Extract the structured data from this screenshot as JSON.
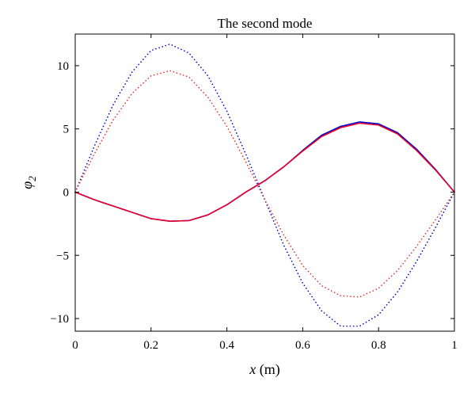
{
  "chart_data": {
    "type": "line",
    "title": "The second mode",
    "xlabel": "x (m)",
    "xlabel_var": "x",
    "xlabel_unit": " (m)",
    "ylabel": "φ2",
    "ylabel_var": "φ",
    "ylabel_sub": "2",
    "xlim": [
      0,
      1
    ],
    "ylim": [
      -11,
      12.5
    ],
    "xticks": [
      0,
      0.2,
      0.4,
      0.6,
      0.8,
      1
    ],
    "xtick_labels": [
      "0",
      "0.2",
      "0.4",
      "0.6",
      "0.8",
      "1"
    ],
    "yticks": [
      -10,
      -5,
      0,
      5,
      10
    ],
    "ytick_labels": [
      "−10",
      "−5",
      "0",
      "5",
      "10"
    ],
    "grid": false,
    "legend": "none",
    "series": [
      {
        "color": "#0000cc",
        "style": "dotted",
        "x": [
          0,
          0.05,
          0.1,
          0.15,
          0.2,
          0.25,
          0.3,
          0.35,
          0.4,
          0.45,
          0.5,
          0.55,
          0.6,
          0.65,
          0.7,
          0.75,
          0.8,
          0.85,
          0.9,
          0.95,
          1
        ],
        "y": [
          0,
          3.6,
          6.9,
          9.5,
          11.2,
          11.7,
          11.0,
          9.2,
          6.4,
          3.0,
          -0.6,
          -4.2,
          -7.2,
          -9.4,
          -10.6,
          -10.6,
          -9.7,
          -7.9,
          -5.5,
          -2.8,
          0
        ]
      },
      {
        "color": "#e03030",
        "style": "dotted",
        "x": [
          0,
          0.05,
          0.1,
          0.15,
          0.2,
          0.25,
          0.3,
          0.35,
          0.4,
          0.45,
          0.5,
          0.55,
          0.6,
          0.65,
          0.7,
          0.75,
          0.8,
          0.85,
          0.9,
          0.95,
          1
        ],
        "y": [
          0,
          3.0,
          5.7,
          7.8,
          9.2,
          9.6,
          9.1,
          7.5,
          5.2,
          2.4,
          -0.6,
          -3.4,
          -5.8,
          -7.4,
          -8.2,
          -8.3,
          -7.6,
          -6.2,
          -4.3,
          -2.2,
          0
        ]
      },
      {
        "color": "#0000cc",
        "style": "solid",
        "x": [
          0,
          0.05,
          0.1,
          0.15,
          0.2,
          0.25,
          0.3,
          0.35,
          0.4,
          0.45,
          0.5,
          0.55,
          0.6,
          0.65,
          0.7,
          0.75,
          0.8,
          0.85,
          0.9,
          0.95,
          1
        ],
        "y": [
          0,
          -0.6,
          -1.1,
          -1.6,
          -2.1,
          -2.3,
          -2.25,
          -1.8,
          -1.0,
          0.0,
          0.9,
          2.0,
          3.3,
          4.5,
          5.2,
          5.55,
          5.4,
          4.7,
          3.4,
          1.8,
          0
        ]
      },
      {
        "color": "#e8002a",
        "style": "solid",
        "x": [
          0,
          0.05,
          0.1,
          0.15,
          0.2,
          0.25,
          0.3,
          0.35,
          0.4,
          0.45,
          0.5,
          0.55,
          0.6,
          0.65,
          0.7,
          0.75,
          0.8,
          0.85,
          0.9,
          0.95,
          1
        ],
        "y": [
          0,
          -0.6,
          -1.1,
          -1.6,
          -2.1,
          -2.3,
          -2.25,
          -1.8,
          -1.0,
          0.0,
          0.9,
          2.0,
          3.25,
          4.4,
          5.1,
          5.45,
          5.3,
          4.6,
          3.3,
          1.75,
          0
        ]
      }
    ]
  }
}
